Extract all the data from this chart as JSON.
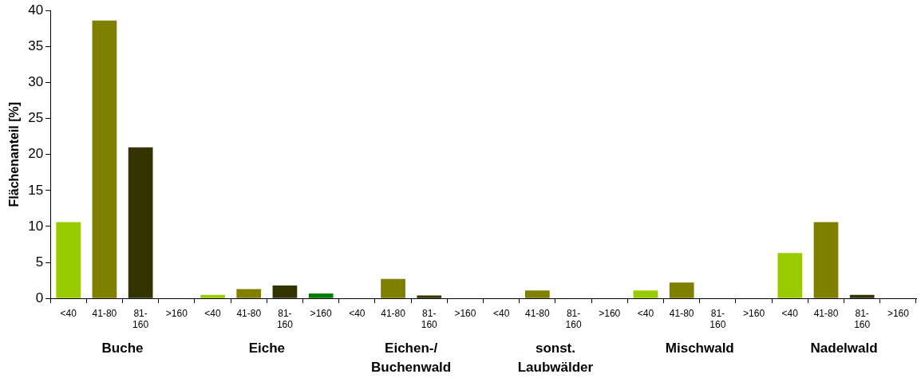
{
  "chart_data": {
    "type": "bar",
    "ylabel": "Flächenanteil [%]",
    "categories": [
      "<40",
      "41-80",
      "81-160",
      ">160",
      "<40",
      "41-80",
      "81-160",
      ">160",
      "<40",
      "41-80",
      "81-160",
      ">160",
      "<40",
      "41-80",
      "81-160",
      ">160",
      "<40",
      "41-80",
      "81-160",
      ">160",
      "<40",
      "41-80",
      "81-160",
      ">160"
    ],
    "values": [
      10.6,
      38.6,
      21.0,
      0,
      0.5,
      1.3,
      1.8,
      0.7,
      0,
      2.7,
      0.4,
      0,
      0,
      1.1,
      0,
      0,
      1.1,
      2.2,
      0,
      0,
      6.3,
      10.6,
      0.5,
      0
    ],
    "colors": [
      "#99cc00",
      "#808000",
      "#333300",
      "#008000",
      "#99cc00",
      "#808000",
      "#333300",
      "#008000",
      "#99cc00",
      "#808000",
      "#333300",
      "#008000",
      "#99cc00",
      "#808000",
      "#333300",
      "#008000",
      "#99cc00",
      "#808000",
      "#333300",
      "#008000",
      "#99cc00",
      "#808000",
      "#333300",
      "#008000"
    ],
    "annotations": [
      "Buche",
      "Eiche",
      "Eichen-/Buchenwald",
      "sonst. Laubwälder",
      "Mischwald",
      "Nadelwald"
    ],
    "ylim": [
      0,
      40
    ],
    "yticks": [
      0,
      5,
      10,
      15,
      20,
      25,
      30,
      35,
      40
    ],
    "grid": false,
    "legend": false
  }
}
